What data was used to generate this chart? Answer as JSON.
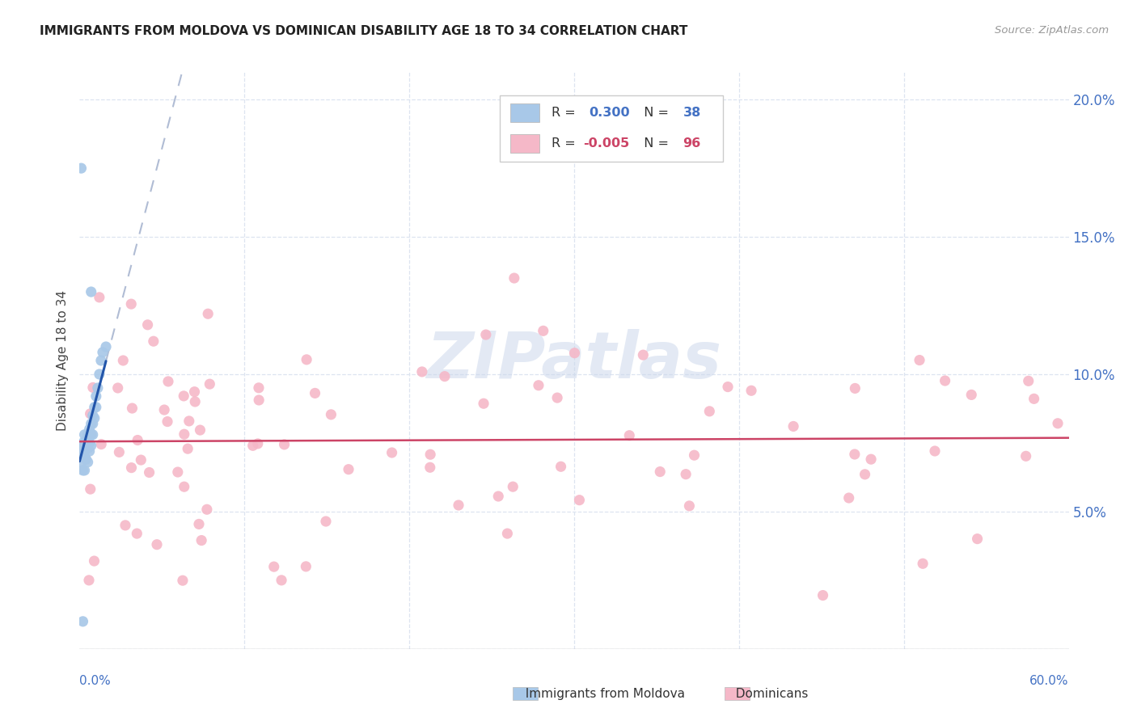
{
  "title": "IMMIGRANTS FROM MOLDOVA VS DOMINICAN DISABILITY AGE 18 TO 34 CORRELATION CHART",
  "source": "Source: ZipAtlas.com",
  "ylabel": "Disability Age 18 to 34",
  "xlim": [
    0.0,
    0.6
  ],
  "ylim": [
    0.0,
    0.21
  ],
  "yticks": [
    0.0,
    0.05,
    0.1,
    0.15,
    0.2
  ],
  "ytick_labels": [
    "",
    "5.0%",
    "10.0%",
    "15.0%",
    "20.0%"
  ],
  "moldova_color": "#a8c8e8",
  "dominican_color": "#f5b8c8",
  "moldova_trend_color": "#2255aa",
  "dominican_trend_color": "#cc4466",
  "dashed_trend_color": "#b0bcd4",
  "watermark_color": "#ccd8ec",
  "title_color": "#222222",
  "source_color": "#999999",
  "tick_color": "#4472c4",
  "grid_color": "#dde4f0",
  "legend_r1_color": "#4472c4",
  "legend_r2_color": "#cc4466",
  "legend_box_edge": "#cccccc",
  "bottom_spine_color": "#bbbbbb"
}
